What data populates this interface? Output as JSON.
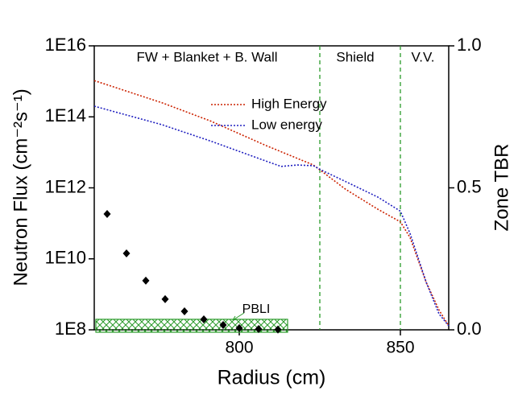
{
  "chart_data": {
    "type": "line",
    "xlabel": "Radius (cm)",
    "ylabel": "Neutron Flux (cm⁻²s⁻¹)",
    "y2label": "Zone TBR",
    "xlim": [
      755,
      865
    ],
    "xticks": [
      800,
      850
    ],
    "ylim": [
      100000000.0,
      1e+16
    ],
    "ylog": true,
    "yticks": [
      {
        "value": 100000000.0,
        "label": "1E8"
      },
      {
        "value": 10000000000.0,
        "label": "1E10"
      },
      {
        "value": 1000000000000.0,
        "label": "1E12"
      },
      {
        "value": 100000000000000.0,
        "label": "1E14"
      },
      {
        "value": 1e+16,
        "label": "1E16"
      }
    ],
    "y2lim": [
      0,
      1
    ],
    "y2ticks": [
      {
        "value": 0,
        "label": "0.0"
      },
      0.5,
      {
        "value": 1,
        "label": "1.0"
      }
    ],
    "legend": "upper center",
    "series": [
      {
        "name": "High Energy",
        "color": "#cc2200",
        "style": "line",
        "x": [
          755,
          776,
          791,
          808,
          823,
          833,
          843,
          850,
          853,
          858,
          862,
          865
        ],
        "values": [
          1050000000000000.0,
          250000000000000.0,
          77000000000000.0,
          16000000000000.0,
          4400000000000.0,
          910000000000.0,
          250000000000.0,
          110000000000.0,
          40000000000.0,
          2200000000.0,
          360000000.0,
          130000000.0
        ]
      },
      {
        "name": "Low energy",
        "color": "#2020c0",
        "style": "line",
        "x": [
          755,
          776,
          791,
          808,
          813,
          818,
          823,
          826,
          833,
          843,
          850,
          853,
          858,
          862,
          865
        ],
        "values": [
          200000000000000.0,
          60000000000000.0,
          21000000000000.0,
          5800000000000.0,
          4000000000000.0,
          4400000000000.0,
          4200000000000.0,
          3000000000000.0,
          1500000000000.0,
          550000000000.0,
          220000000000.0,
          52000000000.0,
          2200000000.0,
          280000000.0,
          130000000.0
        ]
      },
      {
        "color": "#000000",
        "style": "scatter",
        "axis": "y2",
        "x": [
          759,
          765,
          771,
          777,
          783,
          789,
          795,
          800,
          806,
          812
        ],
        "values": [
          0.408,
          0.269,
          0.173,
          0.108,
          0.065,
          0.037,
          0.017,
          0.006,
          0.003,
          0.001
        ]
      }
    ],
    "dividers": [
      825,
      850
    ],
    "divider_color": "#2a9a2a",
    "regions": [
      {
        "label": "FW + Blanket + B. Wall",
        "x": 790
      },
      {
        "label": "Shield",
        "x": 836
      },
      {
        "label": "V.V.",
        "x": 857
      }
    ],
    "band": {
      "label": "PBLI",
      "x": [
        755,
        815
      ],
      "y2": [
        0,
        0.037
      ],
      "color": "#2a9a2a"
    }
  }
}
